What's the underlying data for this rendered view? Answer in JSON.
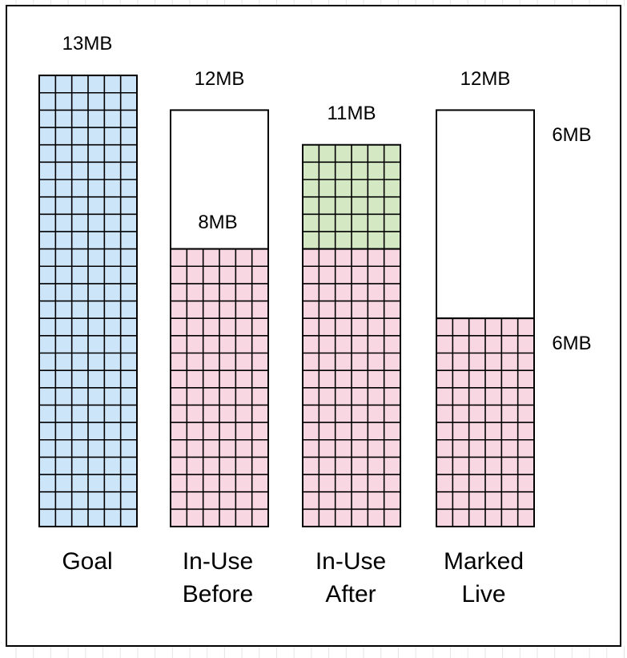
{
  "colors": {
    "goal_fill": "#cce5f9",
    "in_use_fill": "#f8d7e3",
    "growth_fill": "#d5e8c4",
    "empty_fill": "#ffffff",
    "grid_line": "#000000",
    "frame": "#000000"
  },
  "columns": [
    {
      "id": "goal",
      "label_lines": [
        "Goal"
      ],
      "top_label": "13MB",
      "total_mb": 13,
      "filled_mb": 13,
      "fill": "goal"
    },
    {
      "id": "in-use-before",
      "label_lines": [
        "In-Use",
        "Before"
      ],
      "top_label": "12MB",
      "mid_label": "8MB",
      "total_mb": 12,
      "filled_mb": 8,
      "fill": "in_use"
    },
    {
      "id": "in-use-after",
      "label_lines": [
        "In-Use",
        "After"
      ],
      "top_label": "11MB",
      "total_mb": 11,
      "filled_mb": 8,
      "growth_mb": 3,
      "fill": "in_use"
    },
    {
      "id": "marked-live",
      "label_lines": [
        "Marked",
        "Live"
      ],
      "top_label": "12MB",
      "right_labels": [
        "6MB",
        "6MB"
      ],
      "total_mb": 12,
      "filled_mb": 6,
      "fill": "in_use"
    }
  ]
}
